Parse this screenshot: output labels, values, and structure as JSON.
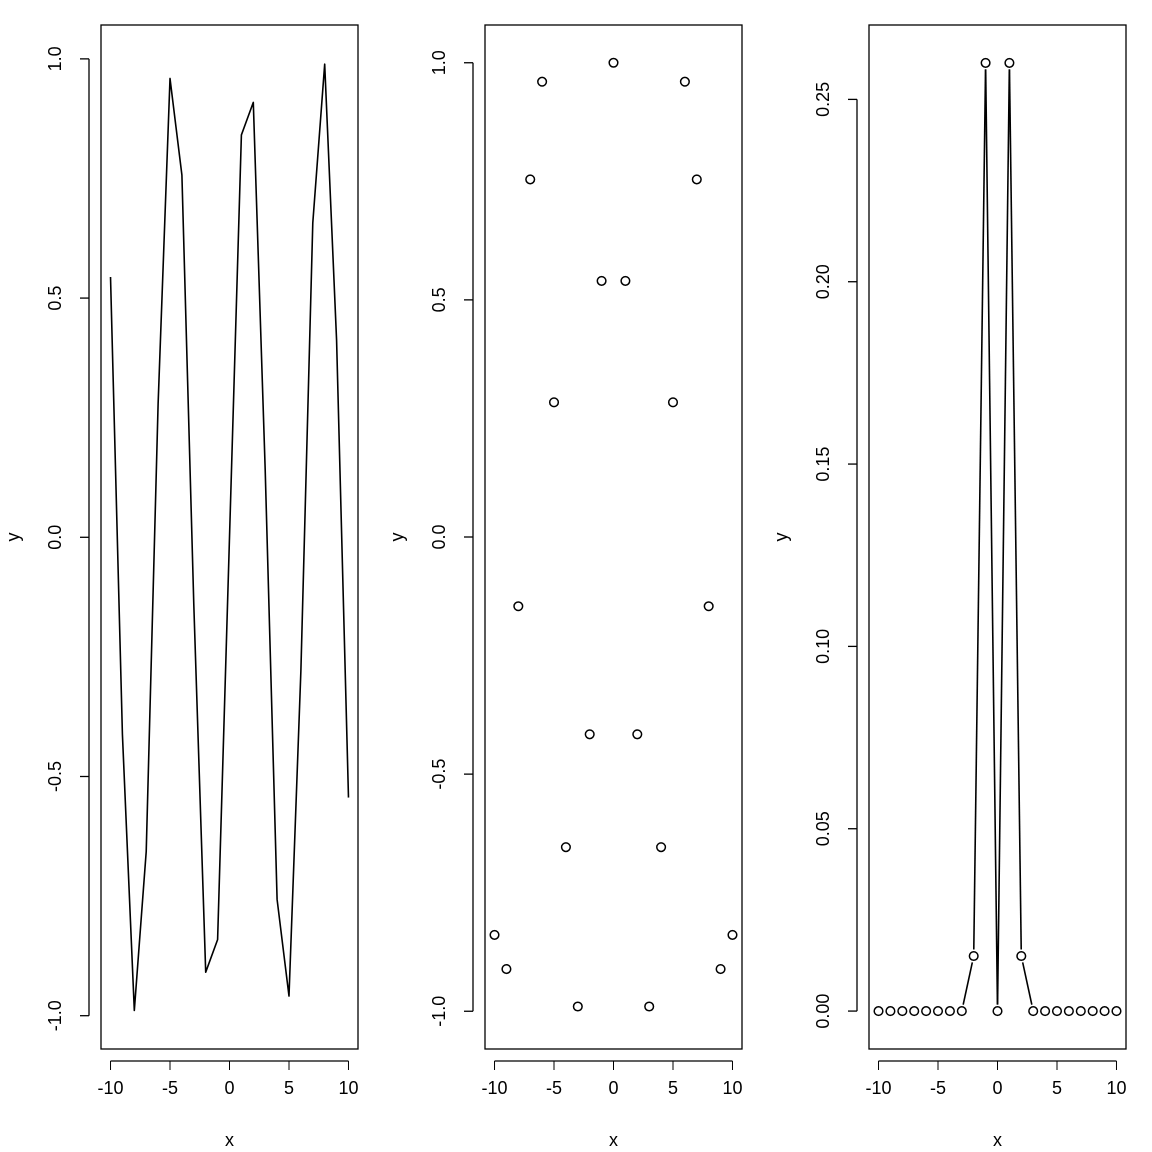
{
  "chart_data": [
    {
      "type": "line",
      "title": "",
      "xlabel": "x",
      "ylabel": "y",
      "xlim": [
        -10,
        10
      ],
      "ylim": [
        -1,
        1
      ],
      "xticks": [
        "-10",
        "-5",
        "0",
        "5",
        "10"
      ],
      "yticks": [
        "-1.0",
        "-0.5",
        "0.0",
        "0.5",
        "1.0"
      ],
      "marker": "none",
      "x": [
        -10,
        -9,
        -8,
        -7,
        -6,
        -5,
        -4,
        -3,
        -2,
        -1,
        0,
        1,
        2,
        3,
        4,
        5,
        6,
        7,
        8,
        9,
        10
      ],
      "y": [
        0.544,
        -0.412,
        -0.989,
        -0.657,
        0.279,
        0.959,
        0.757,
        -0.141,
        -0.909,
        -0.841,
        0.0,
        0.841,
        0.909,
        0.141,
        -0.757,
        -0.959,
        -0.279,
        0.657,
        0.989,
        0.412,
        -0.544
      ]
    },
    {
      "type": "scatter",
      "title": "",
      "xlabel": "x",
      "ylabel": "y",
      "xlim": [
        -10,
        10
      ],
      "ylim": [
        -1,
        1
      ],
      "xticks": [
        "-10",
        "-5",
        "0",
        "5",
        "10"
      ],
      "yticks": [
        "-1.0",
        "-0.5",
        "0.0",
        "0.5",
        "1.0"
      ],
      "marker": "open-circle",
      "x": [
        -10,
        -9,
        -8,
        -7,
        -6,
        -5,
        -4,
        -3,
        -2,
        -1,
        0,
        1,
        2,
        3,
        4,
        5,
        6,
        7,
        8,
        9,
        10
      ],
      "y": [
        -0.839,
        -0.911,
        -0.146,
        0.754,
        0.96,
        0.284,
        -0.654,
        -0.99,
        -0.416,
        0.54,
        1.0,
        0.54,
        -0.416,
        -0.99,
        -0.654,
        0.284,
        0.96,
        0.754,
        -0.146,
        -0.911,
        -0.839
      ]
    },
    {
      "type": "line",
      "title": "",
      "xlabel": "x",
      "ylabel": "y",
      "xlim": [
        -10,
        10
      ],
      "ylim": [
        0,
        0.26
      ],
      "xticks": [
        "-10",
        "-5",
        "0",
        "5",
        "10"
      ],
      "yticks": [
        "0.00",
        "0.05",
        "0.10",
        "0.15",
        "0.20",
        "0.25"
      ],
      "marker": "open-circle-with-gapped-line",
      "x": [
        -10,
        -9,
        -8,
        -7,
        -6,
        -5,
        -4,
        -3,
        -2,
        -1,
        0,
        1,
        2,
        3,
        4,
        5,
        6,
        7,
        8,
        9,
        10
      ],
      "y": [
        0,
        0,
        0,
        0,
        0,
        0,
        0,
        0,
        0.0151,
        0.26,
        0,
        0.26,
        0.0151,
        0,
        0,
        0,
        0,
        0,
        0,
        0,
        0
      ]
    }
  ]
}
